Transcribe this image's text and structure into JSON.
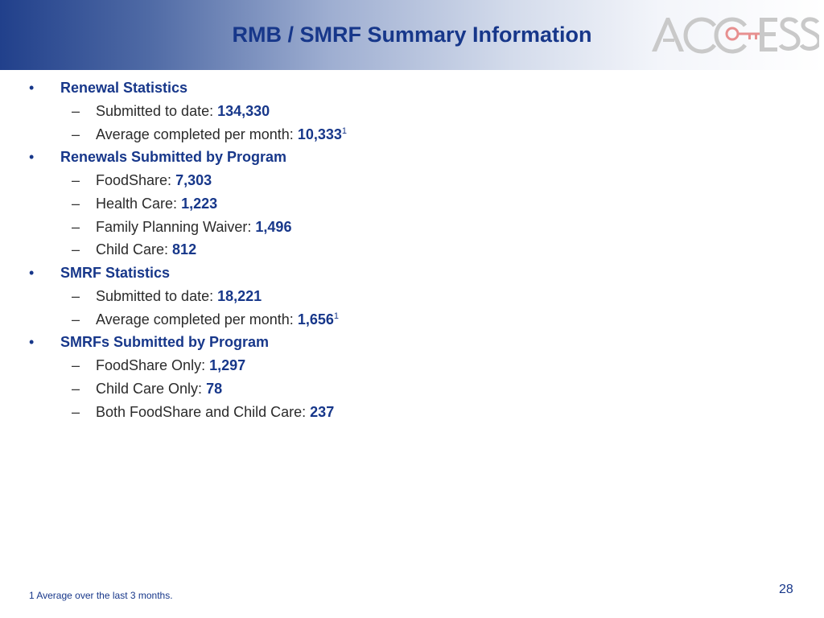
{
  "header": {
    "title": "RMB / SMRF Summary Information",
    "logo_text": "ACCESS"
  },
  "sections": [
    {
      "heading": "Renewal Statistics",
      "items": [
        {
          "label": "Submitted to date: ",
          "value": "134,330",
          "sup": ""
        },
        {
          "label": "Average completed per month: ",
          "value": "10,333",
          "sup": "1"
        }
      ]
    },
    {
      "heading": "Renewals Submitted by Program",
      "items": [
        {
          "label": "FoodShare: ",
          "value": "7,303",
          "sup": ""
        },
        {
          "label": "Health Care: ",
          "value": "1,223",
          "sup": ""
        },
        {
          "label": "Family Planning Waiver: ",
          "value": "1,496",
          "sup": ""
        },
        {
          "label": "Child Care: ",
          "value": "812",
          "sup": ""
        }
      ]
    },
    {
      "heading": "SMRF Statistics",
      "items": [
        {
          "label": "Submitted to date: ",
          "value": "18,221",
          "sup": ""
        },
        {
          "label": "Average completed per month: ",
          "value": "1,656",
          "sup": "1"
        }
      ]
    },
    {
      "heading": "SMRFs Submitted by Program",
      "items": [
        {
          "label": "FoodShare Only: ",
          "value": "1,297",
          "sup": ""
        },
        {
          "label": "Child Care Only: ",
          "value": "78",
          "sup": ""
        },
        {
          "label": "Both FoodShare and Child Care: ",
          "value": "237",
          "sup": ""
        }
      ]
    }
  ],
  "footnote": "1 Average over the last 3 months.",
  "page_number": "28",
  "colors": {
    "title": "#17378a",
    "header_start": "#21408b",
    "logo_gray": "#c8c8c8",
    "logo_key": "#e88a8a"
  }
}
